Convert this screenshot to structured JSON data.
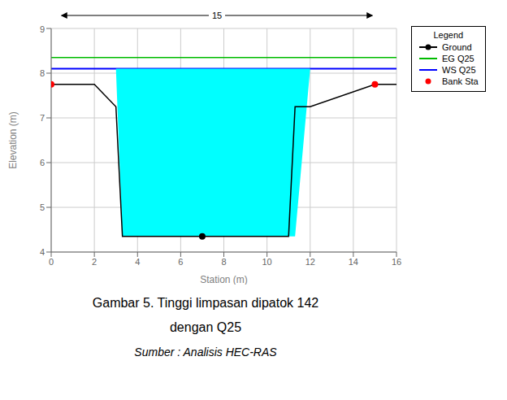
{
  "chart_data": {
    "type": "line",
    "xlabel": "Station (m)",
    "ylabel": "Elevation (m)",
    "xlim": [
      0,
      16
    ],
    "ylim": [
      4,
      9
    ],
    "xticks": [
      0,
      2,
      4,
      6,
      8,
      10,
      12,
      14,
      16
    ],
    "yticks": [
      4,
      5,
      6,
      7,
      8,
      9
    ],
    "grid": true,
    "legend": "right",
    "legend_title": "Legend",
    "annotations": [
      {
        "text": "15"
      }
    ],
    "caption": [
      "Gambar 5. Tinggi limpasan dipatok 142",
      "dengan Q25",
      "Sumber : Analisis HEC-RAS"
    ],
    "series": [
      {
        "type": "area",
        "color": "#00FFFF",
        "x": [
          0,
          2,
          3,
          3.3,
          11,
          11.3,
          12,
          15,
          15,
          0
        ],
        "values": [
          8.1,
          8.1,
          8.1,
          4.35,
          4.35,
          4.35,
          8.1,
          8.1,
          8.1,
          8.1
        ]
      },
      {
        "name": "Ground",
        "type": "line",
        "color": "#000000",
        "x": [
          0,
          0,
          2,
          3,
          3.3,
          11,
          11.3,
          12,
          15,
          15,
          16
        ],
        "values": [
          7.75,
          7.75,
          7.75,
          7.25,
          4.35,
          4.35,
          7.25,
          7.25,
          7.75,
          7.75,
          7.75
        ]
      },
      {
        "name": "Ground",
        "type": "scatter",
        "marker": "circle",
        "color": "#000000",
        "x": [
          7
        ],
        "values": [
          4.35
        ]
      },
      {
        "name": "EG Q25",
        "type": "hline",
        "color": "#00BB00",
        "values": [
          8.35
        ]
      },
      {
        "name": "WS Q25",
        "type": "hline",
        "color": "#0000FF",
        "values": [
          8.1
        ]
      },
      {
        "name": "Bank Sta",
        "type": "scatter",
        "marker": "circle",
        "color": "#FF0000",
        "x": [
          0,
          15
        ],
        "values": [
          7.75,
          7.75
        ]
      }
    ]
  }
}
